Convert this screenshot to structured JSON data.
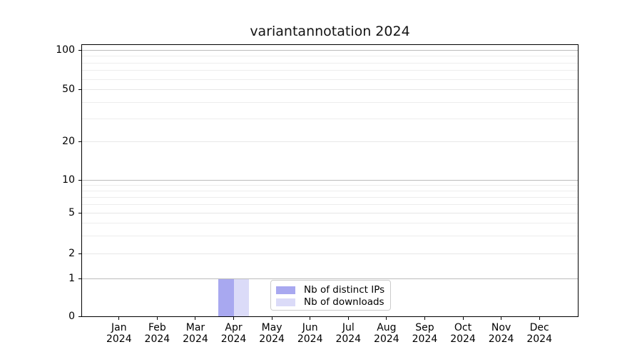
{
  "chart_data": {
    "type": "bar",
    "title": "variantannotation 2024",
    "year": "2024",
    "months": [
      "Jan",
      "Feb",
      "Mar",
      "Apr",
      "May",
      "Jun",
      "Jul",
      "Aug",
      "Sep",
      "Oct",
      "Nov",
      "Dec"
    ],
    "series": [
      {
        "name": "Nb of distinct IPs",
        "color": "#a8a8f0",
        "values": [
          0,
          0,
          0,
          1,
          0,
          0,
          0,
          0,
          0,
          0,
          0,
          0
        ]
      },
      {
        "name": "Nb of downloads",
        "color": "#dbdbf8",
        "values": [
          0,
          0,
          0,
          1,
          0,
          0,
          0,
          0,
          0,
          0,
          0,
          0
        ]
      }
    ],
    "yscale": "log",
    "ytick_labels": [
      100,
      50,
      20,
      10,
      5,
      2,
      1,
      0
    ],
    "minor_grid_values": [
      3,
      4,
      6,
      7,
      8,
      9,
      30,
      40,
      60,
      70,
      80,
      90
    ],
    "ylim": [
      0,
      130
    ],
    "xlabel": "",
    "ylabel": "",
    "grid": "horizontal major+minor",
    "legend_position": "inside-bottom-center"
  },
  "colors": {
    "bar_distinct_ips": "#a8a8f0",
    "bar_downloads": "#dbdbf8",
    "grid_major": "#bcbcbc",
    "grid_labeled_minor": "#e7e7e7",
    "grid_minor": "#ededed",
    "axis": "#000000",
    "legend_border": "#cbcbcb"
  }
}
